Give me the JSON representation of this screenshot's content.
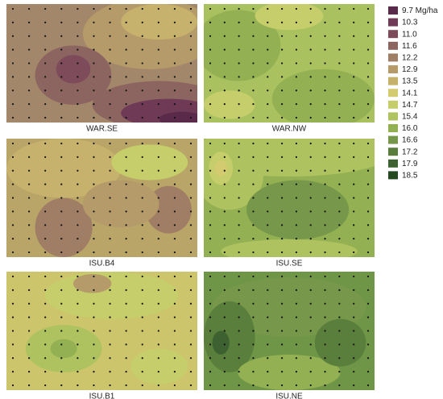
{
  "panels": [
    {
      "label": "WAR.SE"
    },
    {
      "label": "WAR.NW"
    },
    {
      "label": "ISU.B4"
    },
    {
      "label": "ISU.SE"
    },
    {
      "label": "ISU.B1"
    },
    {
      "label": "ISU.NE"
    }
  ],
  "legend": [
    {
      "label": "9.7 Mg/ha",
      "color": "#5a2a4a"
    },
    {
      "label": "10.3",
      "color": "#6e3a55"
    },
    {
      "label": "11.0",
      "color": "#7d4b5a"
    },
    {
      "label": "11.6",
      "color": "#8c6560"
    },
    {
      "label": "12.2",
      "color": "#a07e65"
    },
    {
      "label": "12.9",
      "color": "#b59a6a"
    },
    {
      "label": "13.5",
      "color": "#c6b26c"
    },
    {
      "label": "14.1",
      "color": "#d4ca70"
    },
    {
      "label": "14.7",
      "color": "#c5ce6a"
    },
    {
      "label": "15.4",
      "color": "#aec35f"
    },
    {
      "label": "16.0",
      "color": "#93b053"
    },
    {
      "label": "16.6",
      "color": "#77984a"
    },
    {
      "label": "17.2",
      "color": "#5a7f3d"
    },
    {
      "label": "17.9",
      "color": "#3d6130"
    },
    {
      "label": "18.5",
      "color": "#254a22"
    }
  ]
}
